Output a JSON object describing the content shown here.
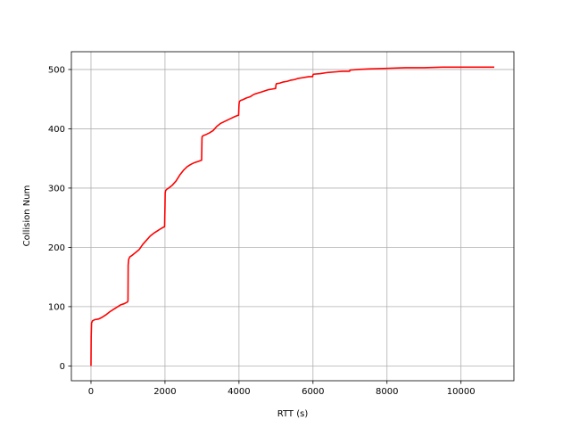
{
  "chart_data": {
    "type": "line",
    "title": "",
    "xlabel": "RTT (s)",
    "ylabel": "Collision Num",
    "xlim": [
      -530,
      11430
    ],
    "ylim": [
      -25,
      530
    ],
    "xticks": [
      0,
      2000,
      4000,
      6000,
      8000,
      10000
    ],
    "xtick_labels": [
      "0",
      "2000",
      "4000",
      "6000",
      "8000",
      "10000"
    ],
    "yticks": [
      0,
      100,
      200,
      300,
      400,
      500
    ],
    "ytick_labels": [
      "0",
      "100",
      "200",
      "300",
      "400",
      "500"
    ],
    "grid": true,
    "legend": "none",
    "series": [
      {
        "color": "#ff0000",
        "x": [
          0,
          5,
          15,
          40,
          100,
          200,
          300,
          400,
          500,
          600,
          700,
          800,
          900,
          990,
          1000,
          1005,
          1020,
          1050,
          1100,
          1200,
          1300,
          1400,
          1500,
          1600,
          1700,
          1800,
          1900,
          1990,
          2000,
          2005,
          2020,
          2050,
          2100,
          2200,
          2300,
          2400,
          2500,
          2600,
          2700,
          2800,
          2900,
          2990,
          3000,
          3005,
          3050,
          3100,
          3200,
          3300,
          3400,
          3500,
          3600,
          3700,
          3800,
          3900,
          3990,
          4000,
          4010,
          4050,
          4100,
          4200,
          4300,
          4400,
          4500,
          4600,
          4700,
          4800,
          4900,
          4990,
          5000,
          5010,
          5100,
          5200,
          5300,
          5400,
          5500,
          5600,
          5700,
          5800,
          5900,
          5990,
          6000,
          6010,
          6200,
          6400,
          6600,
          6800,
          6990,
          7000,
          7200,
          7500,
          8000,
          8500,
          9000,
          9500,
          10000,
          10500,
          10900
        ],
        "y": [
          0,
          50,
          72,
          76,
          78,
          79,
          82,
          86,
          91,
          95,
          99,
          103,
          105,
          108,
          110,
          170,
          180,
          184,
          186,
          191,
          196,
          205,
          212,
          219,
          224,
          228,
          232,
          235,
          270,
          292,
          296,
          298,
          300,
          305,
          312,
          322,
          330,
          336,
          340,
          343,
          345,
          347,
          384,
          387,
          389,
          390,
          393,
          397,
          404,
          409,
          412,
          415,
          418,
          421,
          423,
          440,
          446,
          448,
          449,
          452,
          454,
          458,
          460,
          462,
          464,
          466,
          467,
          468,
          474,
          476,
          477,
          479,
          480,
          482,
          483,
          485,
          486,
          487,
          488,
          488,
          491,
          492,
          493,
          495,
          496,
          497,
          497,
          499,
          500,
          501,
          502,
          503,
          503,
          504,
          504,
          504,
          504
        ]
      }
    ]
  }
}
